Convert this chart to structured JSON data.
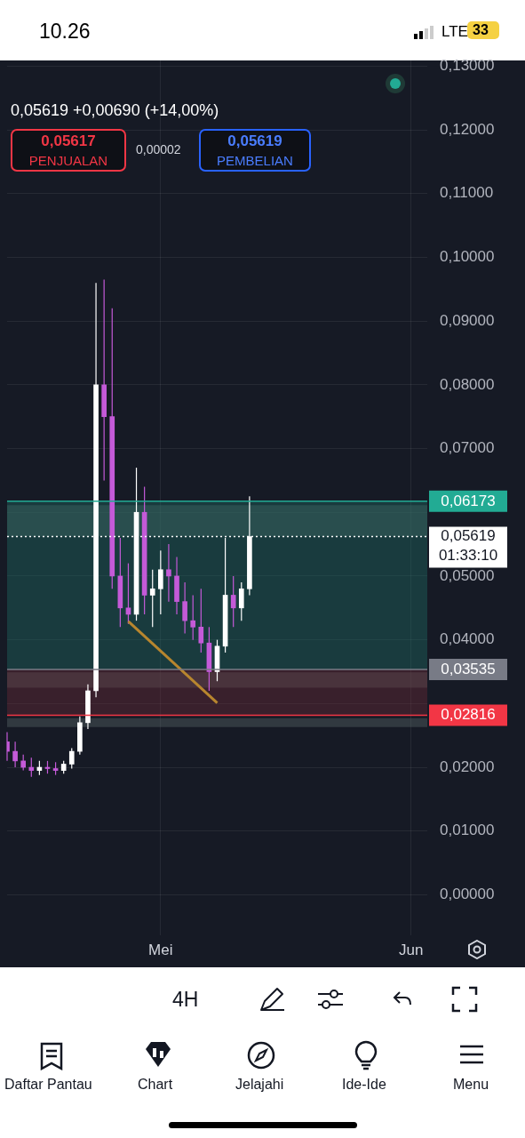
{
  "chart_data": {
    "type": "candlestick",
    "subtitle": "0,05619 +0,00690 (+14,00%)",
    "annotations": [
      "0,05617",
      "PENJUALAN",
      "0,00002",
      "0,05619",
      "PEMBELIAN",
      "10.26",
      "LTE",
      "33",
      "4H",
      "Daftar Pantau",
      "Chart",
      "Jelajahi",
      "Ide-Ide",
      "Menu"
    ],
    "categories": [
      null,
      null,
      null,
      null,
      null,
      null,
      null,
      null,
      null,
      null,
      null,
      null,
      null,
      null,
      null,
      null,
      null,
      null,
      null,
      "Mei",
      null,
      null,
      null,
      null,
      null,
      null,
      null,
      null,
      null,
      null,
      null,
      null,
      null,
      null,
      null,
      null,
      null,
      null,
      null,
      null,
      null,
      null,
      null,
      null,
      null,
      null,
      null,
      null,
      null,
      null,
      "Jun",
      null,
      null
    ],
    "ohlc": [
      [
        0.024,
        0.0255,
        0.021,
        0.0225
      ],
      [
        0.0225,
        0.024,
        0.02,
        0.021
      ],
      [
        0.021,
        0.022,
        0.0195,
        0.02
      ],
      [
        0.02,
        0.0215,
        0.0185,
        0.0195
      ],
      [
        0.0195,
        0.021,
        0.0188,
        0.02
      ],
      [
        0.02,
        0.021,
        0.019,
        0.0198
      ],
      [
        0.0198,
        0.0208,
        0.0188,
        0.0195
      ],
      [
        0.0195,
        0.021,
        0.019,
        0.0205
      ],
      [
        0.0205,
        0.023,
        0.0198,
        0.0225
      ],
      [
        0.0225,
        0.028,
        0.022,
        0.027
      ],
      [
        0.027,
        0.033,
        0.026,
        0.032
      ],
      [
        0.032,
        0.096,
        0.031,
        0.08
      ],
      [
        0.08,
        0.0965,
        0.065,
        0.075
      ],
      [
        0.075,
        0.092,
        0.048,
        0.05
      ],
      [
        0.05,
        0.056,
        0.042,
        0.045
      ],
      [
        0.045,
        0.052,
        0.0425,
        0.044
      ],
      [
        0.044,
        0.067,
        0.043,
        0.06
      ],
      [
        0.06,
        0.064,
        0.044,
        0.047
      ],
      [
        0.047,
        0.051,
        0.042,
        0.048
      ],
      [
        0.048,
        0.054,
        0.044,
        0.051
      ],
      [
        0.051,
        0.055,
        0.046,
        0.05
      ],
      [
        0.05,
        0.053,
        0.044,
        0.046
      ],
      [
        0.046,
        0.049,
        0.041,
        0.043
      ],
      [
        0.043,
        0.047,
        0.04,
        0.042
      ],
      [
        0.042,
        0.048,
        0.038,
        0.0395
      ],
      [
        0.0395,
        0.042,
        0.032,
        0.035
      ],
      [
        0.035,
        0.04,
        0.0335,
        0.039
      ],
      [
        0.039,
        0.056,
        0.038,
        0.047
      ],
      [
        0.047,
        0.05,
        0.042,
        0.045
      ],
      [
        0.045,
        0.049,
        0.043,
        0.048
      ],
      [
        0.048,
        0.0625,
        0.047,
        0.05619
      ],
      null,
      null,
      null,
      null,
      null,
      null,
      null,
      null,
      null,
      null,
      null,
      null,
      null,
      null,
      null,
      null,
      null,
      null,
      null,
      null,
      null,
      null
    ],
    "colors": [
      "#c45ad8",
      "#c45ad8",
      "#c45ad8",
      "#c45ad8",
      "#ffffff",
      "#c45ad8",
      "#c45ad8",
      "#ffffff",
      "#ffffff",
      "#ffffff",
      "#ffffff",
      "#ffffff",
      "#c45ad8",
      "#c45ad8",
      "#c45ad8",
      "#c45ad8",
      "#ffffff",
      "#c45ad8",
      "#ffffff",
      "#ffffff",
      "#c45ad8",
      "#c45ad8",
      "#c45ad8",
      "#c45ad8",
      "#c45ad8",
      "#c45ad8",
      "#ffffff",
      "#ffffff",
      "#c45ad8",
      "#ffffff",
      "#ffffff",
      null,
      null,
      null,
      null,
      null,
      null,
      null,
      null,
      null,
      null,
      null,
      null,
      null,
      null,
      null,
      null,
      null,
      null,
      null,
      null,
      null,
      null
    ],
    "series": [
      {
        "type": "line",
        "values": [
          null,
          null,
          null,
          null,
          null,
          null,
          null,
          null,
          null,
          null,
          null,
          null,
          null,
          null,
          null,
          0.0429,
          null,
          null,
          null,
          null,
          null,
          null,
          null,
          null,
          null,
          null,
          0.0301,
          null,
          null,
          null,
          null,
          null,
          null,
          null,
          null,
          null,
          null,
          null,
          null,
          null,
          null,
          null,
          null,
          null,
          null,
          null,
          null,
          null,
          null,
          null,
          null,
          null,
          null
        ],
        "color": "#b8862e"
      }
    ],
    "ylim": [
      -0.0063,
      0.131
    ],
    "yticks": [
      {
        "value": 0,
        "label": "0,00000"
      },
      {
        "value": 0.01,
        "label": "0,01000"
      },
      {
        "value": 0.02,
        "label": "0,02000"
      },
      {
        "value": 0.03,
        "label": null
      },
      {
        "value": 0.04,
        "label": "0,04000"
      },
      {
        "value": 0.05,
        "label": "0,05000"
      },
      {
        "value": 0.06,
        "label": null
      },
      {
        "value": 0.07,
        "label": "0,07000"
      },
      {
        "value": 0.08,
        "label": "0,08000"
      },
      {
        "value": 0.09,
        "label": "0,09000"
      },
      {
        "value": 0.1,
        "label": "0,10000"
      },
      {
        "value": 0.11,
        "label": "0,11000"
      },
      {
        "value": 0.12,
        "label": "0,12000"
      },
      {
        "value": 0.13,
        "label": "0,13000"
      }
    ],
    "grid": true,
    "bands": [
      {
        "axis": "y",
        "from": 0.0562,
        "to": 0.0611,
        "color": "#5a6a6a"
      },
      {
        "axis": "y",
        "from": 0.0325,
        "to": 0.0349,
        "color": "#5a6a6a"
      },
      {
        "axis": "y",
        "from": 0.0263,
        "to": 0.0277,
        "color": "#5a6a6a"
      },
      {
        "axis": "y",
        "from": 0.03535,
        "to": 0.06173,
        "color": "#1f6e64"
      },
      {
        "axis": "y",
        "from": 0.02816,
        "to": 0.03535,
        "color": "#6e2a36"
      }
    ],
    "ref_lines": [
      {
        "axis": "y",
        "value": 0.06173,
        "label": "0,06173",
        "color": "#22ab94"
      },
      {
        "axis": "y",
        "value": 0.05619,
        "label": "0,05619 01:33:10",
        "color": "#ffffff",
        "line_style": "dotted"
      },
      {
        "axis": "y",
        "value": 0.03535,
        "label": "0,03535",
        "color": "#787b86"
      },
      {
        "axis": "y",
        "value": 0.02816,
        "label": "0,02816",
        "color": "#f23645"
      }
    ],
    "legend": false
  }
}
